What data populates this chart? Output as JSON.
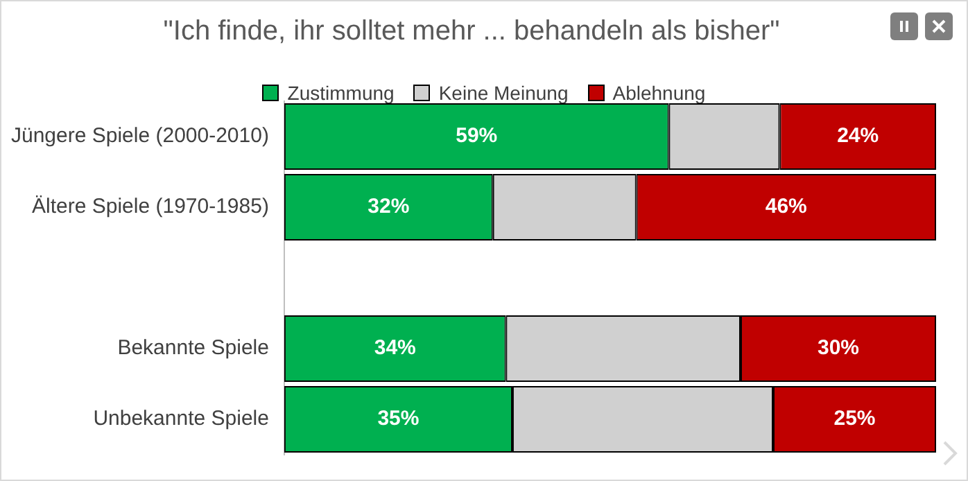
{
  "chart_data": {
    "type": "bar",
    "orientation": "horizontal",
    "stacked": true,
    "title": "\"Ich finde, ihr solltet mehr ... behandeln als bisher\"",
    "categories": [
      "Jüngere Spiele (2000-2010)",
      "Ältere Spiele (1970-1985)",
      null,
      "Bekannte Spiele",
      "Unbekannte Spiele"
    ],
    "series": [
      {
        "name": "Zustimmung",
        "color": "#00b050",
        "values": [
          59,
          32,
          null,
          34,
          35
        ],
        "value_labels": [
          "59%",
          "32%",
          null,
          "34%",
          "35%"
        ]
      },
      {
        "name": "Keine Meinung",
        "color": "#d0d0d0",
        "values": [
          17,
          22,
          null,
          36,
          40
        ],
        "value_labels": [
          null,
          null,
          null,
          null,
          null
        ]
      },
      {
        "name": "Ablehnung",
        "color": "#c00000",
        "values": [
          24,
          46,
          null,
          30,
          25
        ],
        "value_labels": [
          "24%",
          "46%",
          null,
          "30%",
          "25%"
        ]
      }
    ],
    "xlim": [
      0,
      100
    ],
    "legend": "top",
    "grid": false,
    "tick_labels": "y"
  }
}
